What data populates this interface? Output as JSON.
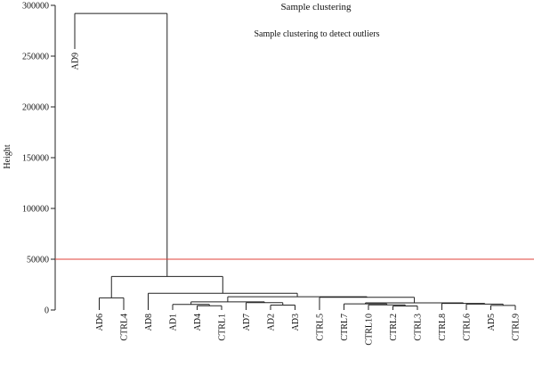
{
  "chart_data": {
    "type": "dendrogram",
    "title": "Sample clustering",
    "subtitle": "Sample clustering to detect outliers",
    "ylabel": "Height",
    "xlabel": "",
    "ylim": [
      0,
      300000
    ],
    "yticks": [
      0,
      50000,
      100000,
      150000,
      200000,
      250000,
      300000
    ],
    "cut_line": {
      "value": 50000,
      "color": "#e0403a"
    },
    "line_color": "#222222",
    "leaves": [
      "AD9",
      "AD6",
      "CTRL4",
      "AD8",
      "AD1",
      "AD4",
      "CTRL1",
      "AD7",
      "AD2",
      "AD3",
      "CTRL5",
      "CTRL7",
      "CTRL10",
      "CTRL2",
      "CTRL3",
      "CTRL8",
      "CTRL6",
      "AD5",
      "CTRL9"
    ],
    "leaf_heights": {
      "AD9": 257000,
      "AD6": 0,
      "CTRL4": 0,
      "AD8": 0,
      "AD1": 0,
      "AD4": 0,
      "CTRL1": 0,
      "AD7": 0,
      "AD2": 0,
      "AD3": 0,
      "CTRL5": 0,
      "CTRL7": 0,
      "CTRL10": 0,
      "CTRL2": 0,
      "CTRL3": 0,
      "CTRL8": 0,
      "CTRL6": 0,
      "AD5": 0,
      "CTRL9": 0
    },
    "merges": [
      {
        "id": "m1",
        "left": "CTRL2",
        "right": "CTRL3",
        "height": 4000
      },
      {
        "id": "m2",
        "left": "AD4",
        "right": "CTRL1",
        "height": 4200
      },
      {
        "id": "m3",
        "left": "AD5",
        "right": "CTRL9",
        "height": 4500
      },
      {
        "id": "m4",
        "left": "AD2",
        "right": "AD3",
        "height": 4800
      },
      {
        "id": "m5",
        "left": "CTRL10",
        "right": "m1",
        "height": 5000
      },
      {
        "id": "m6",
        "left": "AD1",
        "right": "m2",
        "height": 5500
      },
      {
        "id": "m7",
        "left": "CTRL6",
        "right": "m3",
        "height": 5800
      },
      {
        "id": "m8",
        "left": "CTRL7",
        "right": "m5",
        "height": 6000
      },
      {
        "id": "m9",
        "left": "CTRL8",
        "right": "m7",
        "height": 6500
      },
      {
        "id": "m10",
        "left": "AD7",
        "right": "m4",
        "height": 7200
      },
      {
        "id": "m11",
        "left": "m8",
        "right": "m9",
        "height": 7000
      },
      {
        "id": "m12",
        "left": "m6",
        "right": "m10",
        "height": 8000
      },
      {
        "id": "m13",
        "left": "CTRL5",
        "right": "m11",
        "height": 12500
      },
      {
        "id": "m14",
        "left": "AD6",
        "right": "CTRL4",
        "height": 12000
      },
      {
        "id": "m15",
        "left": "m12",
        "right": "m13",
        "height": 13000
      },
      {
        "id": "m16",
        "left": "AD8",
        "right": "m15",
        "height": 16500
      },
      {
        "id": "m17",
        "left": "m14",
        "right": "m16",
        "height": 33000
      },
      {
        "id": "m18",
        "left": "AD9",
        "right": "m17",
        "height": 292000
      }
    ]
  }
}
